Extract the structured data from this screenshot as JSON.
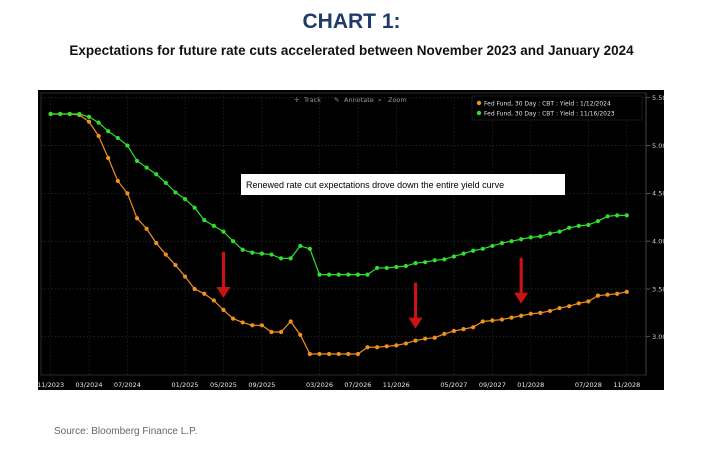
{
  "header": {
    "title": "CHART 1:",
    "subtitle": "Expectations for future rate cuts accelerated between November 2023 and January 2024"
  },
  "footer": {
    "source": "Source: Bloomberg Finance L.P."
  },
  "toolbar": {
    "track": "Track",
    "annotate": "Annotate",
    "zoom": "Zoom"
  },
  "annotation": "Renewed rate cut expectations drove down the entire yield curve",
  "colors": {
    "background": "#000000",
    "orange_series": "#f0901e",
    "green_series": "#2fe02f",
    "arrow": "#c81414",
    "title": "#1f3a6b"
  },
  "chart_data": {
    "type": "line",
    "x_tick_labels": [
      "11/2023",
      "03/2024",
      "07/2024",
      "01/2025",
      "05/2025",
      "09/2025",
      "03/2026",
      "07/2026",
      "11/2026",
      "05/2027",
      "09/2027",
      "01/2028",
      "07/2028",
      "11/2028"
    ],
    "x_tick_idx": [
      0,
      4,
      8,
      14,
      18,
      22,
      28,
      32,
      36,
      42,
      46,
      50,
      56,
      60
    ],
    "y_ticks": [
      "5.50",
      "5.00",
      "4.50",
      "4.00",
      "3.50",
      "3.00"
    ],
    "ylim": [
      2.6,
      5.55
    ],
    "xlim": [
      -1,
      62
    ],
    "y_axis_side": "right",
    "legend_position": "top-right",
    "series": [
      {
        "name": "Fed Fund, 30 Day : CBT : Yield : 1/12/2024",
        "color": "#f0901e",
        "values": [
          5.33,
          5.33,
          5.33,
          5.32,
          5.25,
          5.1,
          4.87,
          4.63,
          4.5,
          4.24,
          4.13,
          3.98,
          3.86,
          3.75,
          3.63,
          3.5,
          3.45,
          3.38,
          3.28,
          3.19,
          3.15,
          3.12,
          3.12,
          3.05,
          3.05,
          3.16,
          3.02,
          2.82,
          2.82,
          2.82,
          2.82,
          2.82,
          2.82,
          2.89,
          2.89,
          2.9,
          2.91,
          2.93,
          2.96,
          2.98,
          2.99,
          3.03,
          3.06,
          3.08,
          3.1,
          3.16,
          3.17,
          3.18,
          3.2,
          3.22,
          3.24,
          3.25,
          3.27,
          3.3,
          3.32,
          3.35,
          3.37,
          3.43,
          3.44,
          3.45,
          3.47
        ]
      },
      {
        "name": "Fed Fund, 30 Day : CBT : Yield : 11/16/2023",
        "color": "#2fe02f",
        "values": [
          5.33,
          5.33,
          5.33,
          5.33,
          5.3,
          5.24,
          5.15,
          5.08,
          5.0,
          4.84,
          4.77,
          4.7,
          4.61,
          4.51,
          4.44,
          4.35,
          4.22,
          4.16,
          4.1,
          4.0,
          3.91,
          3.88,
          3.87,
          3.86,
          3.82,
          3.82,
          3.95,
          3.92,
          3.65,
          3.65,
          3.65,
          3.65,
          3.65,
          3.65,
          3.72,
          3.72,
          3.73,
          3.74,
          3.77,
          3.78,
          3.8,
          3.81,
          3.84,
          3.87,
          3.9,
          3.92,
          3.95,
          3.98,
          4.0,
          4.02,
          4.04,
          4.05,
          4.08,
          4.1,
          4.14,
          4.16,
          4.17,
          4.21,
          4.26,
          4.27,
          4.27
        ]
      }
    ],
    "arrows_at_x": [
      18,
      38,
      49
    ]
  }
}
